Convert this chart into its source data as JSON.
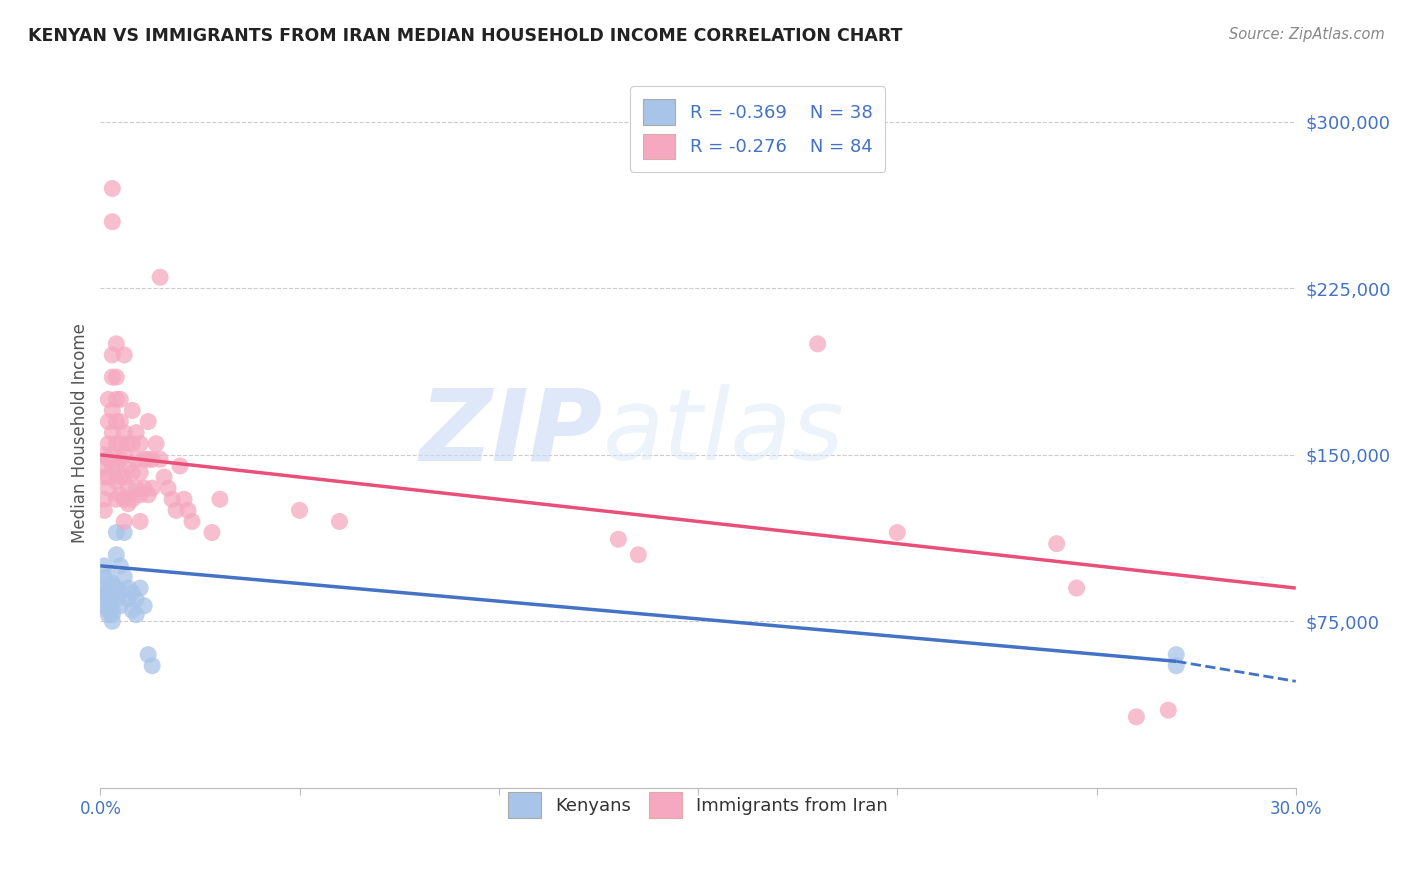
{
  "title": "KENYAN VS IMMIGRANTS FROM IRAN MEDIAN HOUSEHOLD INCOME CORRELATION CHART",
  "source": "Source: ZipAtlas.com",
  "ylabel": "Median Household Income",
  "yticks": [
    75000,
    150000,
    225000,
    300000
  ],
  "ytick_labels": [
    "$75,000",
    "$150,000",
    "$225,000",
    "$300,000"
  ],
  "xlim": [
    0.0,
    0.3
  ],
  "ylim": [
    0,
    320000
  ],
  "legend_R_blue": "-0.369",
  "legend_N_blue": "38",
  "legend_R_pink": "-0.276",
  "legend_N_pink": "84",
  "color_blue": "#a8c4e8",
  "color_pink": "#f5a8c0",
  "color_blue_line": "#4472c4",
  "color_pink_line": "#e8507a",
  "watermark_zip": "ZIP",
  "watermark_atlas": "atlas",
  "blue_scatter": [
    [
      0.001,
      100000
    ],
    [
      0.001,
      95000
    ],
    [
      0.001,
      90000
    ],
    [
      0.001,
      88000
    ],
    [
      0.001,
      85000
    ],
    [
      0.001,
      82000
    ],
    [
      0.002,
      95000
    ],
    [
      0.002,
      88000
    ],
    [
      0.002,
      85000
    ],
    [
      0.002,
      80000
    ],
    [
      0.002,
      78000
    ],
    [
      0.003,
      92000
    ],
    [
      0.003,
      88000
    ],
    [
      0.003,
      85000
    ],
    [
      0.003,
      80000
    ],
    [
      0.003,
      78000
    ],
    [
      0.003,
      75000
    ],
    [
      0.004,
      115000
    ],
    [
      0.004,
      105000
    ],
    [
      0.004,
      90000
    ],
    [
      0.004,
      85000
    ],
    [
      0.005,
      100000
    ],
    [
      0.005,
      88000
    ],
    [
      0.005,
      82000
    ],
    [
      0.006,
      115000
    ],
    [
      0.006,
      95000
    ],
    [
      0.007,
      90000
    ],
    [
      0.007,
      85000
    ],
    [
      0.008,
      88000
    ],
    [
      0.008,
      80000
    ],
    [
      0.009,
      85000
    ],
    [
      0.009,
      78000
    ],
    [
      0.01,
      90000
    ],
    [
      0.011,
      82000
    ],
    [
      0.012,
      60000
    ],
    [
      0.013,
      55000
    ],
    [
      0.27,
      60000
    ],
    [
      0.27,
      55000
    ]
  ],
  "pink_scatter": [
    [
      0.001,
      150000
    ],
    [
      0.001,
      145000
    ],
    [
      0.001,
      140000
    ],
    [
      0.001,
      130000
    ],
    [
      0.001,
      125000
    ],
    [
      0.002,
      175000
    ],
    [
      0.002,
      165000
    ],
    [
      0.002,
      155000
    ],
    [
      0.002,
      148000
    ],
    [
      0.002,
      140000
    ],
    [
      0.002,
      135000
    ],
    [
      0.003,
      270000
    ],
    [
      0.003,
      255000
    ],
    [
      0.003,
      195000
    ],
    [
      0.003,
      185000
    ],
    [
      0.003,
      170000
    ],
    [
      0.003,
      160000
    ],
    [
      0.003,
      150000
    ],
    [
      0.003,
      145000
    ],
    [
      0.004,
      200000
    ],
    [
      0.004,
      185000
    ],
    [
      0.004,
      175000
    ],
    [
      0.004,
      165000
    ],
    [
      0.004,
      155000
    ],
    [
      0.004,
      145000
    ],
    [
      0.004,
      138000
    ],
    [
      0.004,
      130000
    ],
    [
      0.005,
      175000
    ],
    [
      0.005,
      165000
    ],
    [
      0.005,
      155000
    ],
    [
      0.005,
      148000
    ],
    [
      0.005,
      140000
    ],
    [
      0.005,
      132000
    ],
    [
      0.006,
      195000
    ],
    [
      0.006,
      160000
    ],
    [
      0.006,
      150000
    ],
    [
      0.006,
      140000
    ],
    [
      0.006,
      130000
    ],
    [
      0.006,
      120000
    ],
    [
      0.007,
      155000
    ],
    [
      0.007,
      145000
    ],
    [
      0.007,
      135000
    ],
    [
      0.007,
      128000
    ],
    [
      0.008,
      170000
    ],
    [
      0.008,
      155000
    ],
    [
      0.008,
      142000
    ],
    [
      0.008,
      130000
    ],
    [
      0.009,
      160000
    ],
    [
      0.009,
      148000
    ],
    [
      0.009,
      135000
    ],
    [
      0.01,
      155000
    ],
    [
      0.01,
      142000
    ],
    [
      0.01,
      132000
    ],
    [
      0.01,
      120000
    ],
    [
      0.011,
      148000
    ],
    [
      0.011,
      135000
    ],
    [
      0.012,
      165000
    ],
    [
      0.012,
      148000
    ],
    [
      0.012,
      132000
    ],
    [
      0.013,
      148000
    ],
    [
      0.013,
      135000
    ],
    [
      0.014,
      155000
    ],
    [
      0.015,
      230000
    ],
    [
      0.015,
      148000
    ],
    [
      0.016,
      140000
    ],
    [
      0.017,
      135000
    ],
    [
      0.018,
      130000
    ],
    [
      0.019,
      125000
    ],
    [
      0.02,
      145000
    ],
    [
      0.021,
      130000
    ],
    [
      0.022,
      125000
    ],
    [
      0.023,
      120000
    ],
    [
      0.028,
      115000
    ],
    [
      0.03,
      130000
    ],
    [
      0.05,
      125000
    ],
    [
      0.06,
      120000
    ],
    [
      0.13,
      112000
    ],
    [
      0.135,
      105000
    ],
    [
      0.18,
      200000
    ],
    [
      0.2,
      115000
    ],
    [
      0.24,
      110000
    ],
    [
      0.245,
      90000
    ],
    [
      0.26,
      32000
    ],
    [
      0.268,
      35000
    ]
  ]
}
